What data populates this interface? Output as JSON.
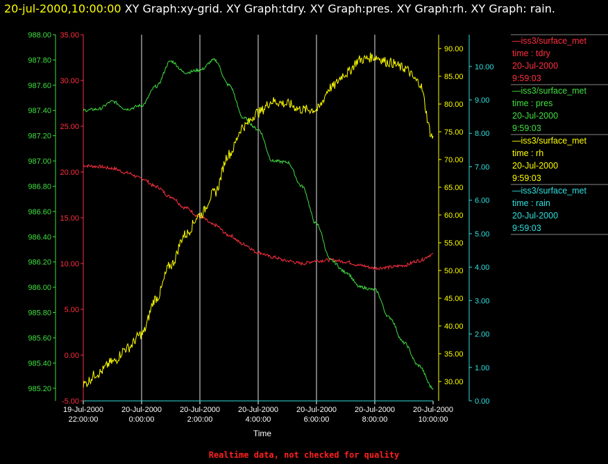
{
  "header": {
    "timestamp": "20-jul-2000,10:00:00",
    "graphs": "XY Graph:xy-grid.  XY Graph:tdry.  XY Graph:pres.  XY Graph:rh.  XY Graph: rain."
  },
  "footer": "Realtime data, not checked for quality",
  "colors": {
    "tdry": "#ff3040",
    "pres": "#40e040",
    "rh": "#ffff00",
    "rain": "#30e0e0",
    "grid": "#ffffff"
  },
  "chart_data": {
    "type": "line",
    "xlabel": "Time",
    "x_ticks": [
      {
        "t": 0,
        "line1": "19-Jul-2000",
        "line2": "22:00:00"
      },
      {
        "t": 2,
        "line1": "20-Jul-2000",
        "line2": "0:00:00"
      },
      {
        "t": 4,
        "line1": "20-Jul-2000",
        "line2": "2:00:00"
      },
      {
        "t": 6,
        "line1": "20-Jul-2000",
        "line2": "4:00:00"
      },
      {
        "t": 8,
        "line1": "20-Jul-2000",
        "line2": "6:00:00"
      },
      {
        "t": 10,
        "line1": "20-Jul-2000",
        "line2": "8:00:00"
      },
      {
        "t": 12,
        "line1": "20-Jul-2000",
        "line2": "10:00:00"
      }
    ],
    "x_unit": "hours since 19-Jul-2000 22:00:00",
    "xlim": [
      0,
      12
    ],
    "axes": {
      "pres": {
        "ylim": [
          985.1,
          988.0
        ],
        "ticks": [
          "985.20",
          "985.40",
          "985.60",
          "985.80",
          "986.00",
          "986.20",
          "986.40",
          "986.60",
          "986.80",
          "987.00",
          "987.20",
          "987.40",
          "987.60",
          "987.80",
          "988.00"
        ]
      },
      "tdry": {
        "ylim": [
          -5,
          35
        ],
        "ticks": [
          "-5.00",
          "0.00",
          "5.00",
          "10.00",
          "15.00",
          "20.00",
          "25.00",
          "30.00",
          "35.00"
        ]
      },
      "rh": {
        "ylim": [
          26.5,
          92.5
        ],
        "ticks": [
          "30.00",
          "35.00",
          "40.00",
          "45.00",
          "50.00",
          "55.00",
          "60.00",
          "65.00",
          "70.00",
          "75.00",
          "80.00",
          "85.00",
          "90.00"
        ]
      },
      "rain": {
        "ylim": [
          0,
          10.95
        ],
        "ticks": [
          "0.00",
          "1.00",
          "2.00",
          "3.00",
          "4.00",
          "5.00",
          "6.00",
          "7.00",
          "8.00",
          "9.00",
          "10.00"
        ]
      }
    },
    "series": [
      {
        "name": "tdry",
        "axis": "tdry",
        "x": [
          0,
          0.5,
          1,
          1.5,
          2,
          2.5,
          3,
          3.5,
          4,
          4.5,
          5,
          5.5,
          6,
          6.5,
          7,
          7.5,
          8,
          8.5,
          9,
          9.5,
          10,
          10.5,
          11,
          11.5,
          12
        ],
        "y": [
          20.7,
          20.6,
          20.4,
          19.9,
          19.3,
          18.4,
          17.3,
          16.1,
          15.1,
          14.2,
          13.1,
          12.1,
          11.2,
          10.7,
          10.3,
          10.0,
          10.3,
          10.4,
          10.2,
          9.8,
          9.5,
          9.6,
          9.8,
          10.3,
          11.0
        ]
      },
      {
        "name": "pres",
        "axis": "pres",
        "x": [
          0,
          0.5,
          1,
          1.5,
          2,
          2.5,
          3,
          3.5,
          4,
          4.5,
          5,
          5.5,
          6,
          6.5,
          7,
          7.5,
          8,
          8.5,
          9,
          9.5,
          10,
          10.5,
          11,
          11.5,
          12
        ],
        "y": [
          987.4,
          987.41,
          987.47,
          987.41,
          987.44,
          987.59,
          987.79,
          987.7,
          987.72,
          987.8,
          987.6,
          987.34,
          987.25,
          987.0,
          986.99,
          986.8,
          986.5,
          986.21,
          986.12,
          986.0,
          985.98,
          985.76,
          985.56,
          985.38,
          985.2
        ]
      },
      {
        "name": "rh",
        "axis": "rh",
        "x": [
          0,
          0.5,
          1,
          1.5,
          2,
          2.5,
          3,
          3.5,
          4,
          4.5,
          5,
          5.5,
          6,
          6.5,
          7,
          7.5,
          8,
          8.5,
          9,
          9.5,
          10,
          10.5,
          11,
          11.5,
          12
        ],
        "y": [
          29.5,
          31.5,
          33.5,
          36.0,
          38.5,
          45.0,
          51.0,
          56.5,
          60.0,
          64.0,
          71.0,
          76.0,
          78.5,
          80.5,
          80.0,
          79.0,
          79.0,
          83.0,
          85.5,
          88.0,
          88.5,
          87.5,
          86.5,
          84.0,
          74.0
        ]
      },
      {
        "name": "rain",
        "axis": "rain",
        "x": [
          0,
          12
        ],
        "y": [
          0.0,
          0.0
        ]
      }
    ]
  },
  "legend": [
    {
      "key": "tdry",
      "source": "—iss3/surface_met",
      "label": "time : tdry",
      "date": "20-Jul-2000",
      "time": "9:59:03"
    },
    {
      "key": "pres",
      "source": "—iss3/surface_met",
      "label": "time : pres",
      "date": "20-Jul-2000",
      "time": "9:59:03"
    },
    {
      "key": "rh",
      "source": "—iss3/surface_met",
      "label": "time : rh",
      "date": "20-Jul-2000",
      "time": "9:59:03"
    },
    {
      "key": "rain",
      "source": "—iss3/surface_met",
      "label": "time : rain",
      "date": "20-Jul-2000",
      "time": "9:59:03"
    }
  ]
}
